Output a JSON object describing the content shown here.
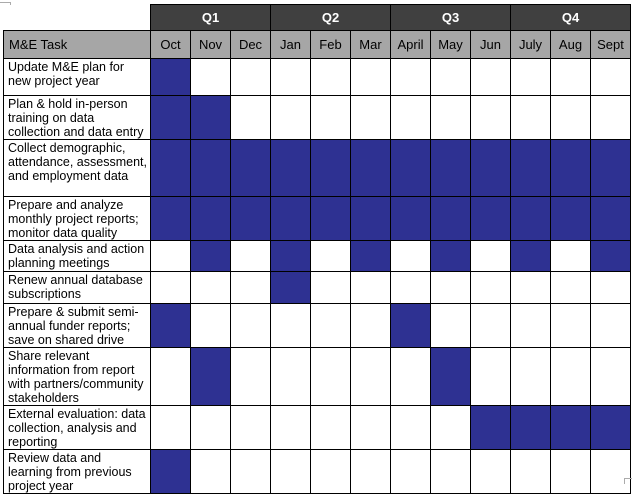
{
  "table": {
    "task_header": "M&E Task"
  },
  "colors": {
    "bar_fill": "#2E3192",
    "quarter_header_bg": "#404040",
    "quarter_header_text": "#FFFFFF",
    "month_header_bg": "#A6A6A6",
    "grid_border": "#000000",
    "page_bg": "#FFFFFF",
    "handle_gray": "#ABABAB"
  },
  "chart_data": {
    "type": "table",
    "title": "",
    "columns": [
      "Oct",
      "Nov",
      "Dec",
      "Jan",
      "Feb",
      "Mar",
      "April",
      "May",
      "Jun",
      "July",
      "Aug",
      "Sept"
    ],
    "column_groups": [
      {
        "label": "Q1",
        "span": 3,
        "columns": [
          "Oct",
          "Nov",
          "Dec"
        ]
      },
      {
        "label": "Q2",
        "span": 3,
        "columns": [
          "Jan",
          "Feb",
          "Mar"
        ]
      },
      {
        "label": "Q3",
        "span": 3,
        "columns": [
          "April",
          "May",
          "Jun"
        ]
      },
      {
        "label": "Q4",
        "span": 3,
        "columns": [
          "July",
          "Aug",
          "Sept"
        ]
      }
    ],
    "rows": [
      {
        "task": "Update M&E plan for new project year",
        "active_months": [
          "Oct"
        ],
        "cells": [
          1,
          0,
          0,
          0,
          0,
          0,
          0,
          0,
          0,
          0,
          0,
          0
        ]
      },
      {
        "task": "Plan & hold in-person training on data collection and data entry",
        "active_months": [
          "Oct",
          "Nov"
        ],
        "cells": [
          1,
          1,
          0,
          0,
          0,
          0,
          0,
          0,
          0,
          0,
          0,
          0
        ]
      },
      {
        "task": "Collect demographic, attendance, assessment, and employment data",
        "active_months": [
          "Oct",
          "Nov",
          "Dec",
          "Jan",
          "Feb",
          "Mar",
          "April",
          "May",
          "Jun",
          "July",
          "Aug",
          "Sept"
        ],
        "cells": [
          1,
          1,
          1,
          1,
          1,
          1,
          1,
          1,
          1,
          1,
          1,
          1
        ]
      },
      {
        "task": "Prepare and analyze monthly project reports; monitor data quality",
        "active_months": [
          "Oct",
          "Nov",
          "Dec",
          "Jan",
          "Feb",
          "Mar",
          "April",
          "May",
          "Jun",
          "July",
          "Aug",
          "Sept"
        ],
        "cells": [
          1,
          1,
          1,
          1,
          1,
          1,
          1,
          1,
          1,
          1,
          1,
          1
        ]
      },
      {
        "task": "Data analysis and action planning meetings",
        "active_months": [
          "Nov",
          "Jan",
          "Mar",
          "May",
          "July",
          "Sept"
        ],
        "cells": [
          0,
          1,
          0,
          1,
          0,
          1,
          0,
          1,
          0,
          1,
          0,
          1
        ]
      },
      {
        "task": "Renew annual database subscriptions",
        "active_months": [
          "Jan"
        ],
        "cells": [
          0,
          0,
          0,
          1,
          0,
          0,
          0,
          0,
          0,
          0,
          0,
          0
        ]
      },
      {
        "task": "Prepare & submit semi-annual funder reports; save on shared drive",
        "active_months": [
          "Oct",
          "April"
        ],
        "cells": [
          1,
          0,
          0,
          0,
          0,
          0,
          1,
          0,
          0,
          0,
          0,
          0
        ]
      },
      {
        "task": "Share relevant information from report with partners/community stakeholders",
        "active_months": [
          "Nov",
          "May"
        ],
        "cells": [
          0,
          1,
          0,
          0,
          0,
          0,
          0,
          1,
          0,
          0,
          0,
          0
        ]
      },
      {
        "task": "External evaluation: data collection, analysis and reporting",
        "active_months": [
          "Jun",
          "July",
          "Aug",
          "Sept"
        ],
        "cells": [
          0,
          0,
          0,
          0,
          0,
          0,
          0,
          0,
          1,
          1,
          1,
          1
        ]
      },
      {
        "task": "Review data and learning from previous project year",
        "active_months": [
          "Oct"
        ],
        "cells": [
          1,
          0,
          0,
          0,
          0,
          0,
          0,
          0,
          0,
          0,
          0,
          0
        ]
      }
    ]
  }
}
